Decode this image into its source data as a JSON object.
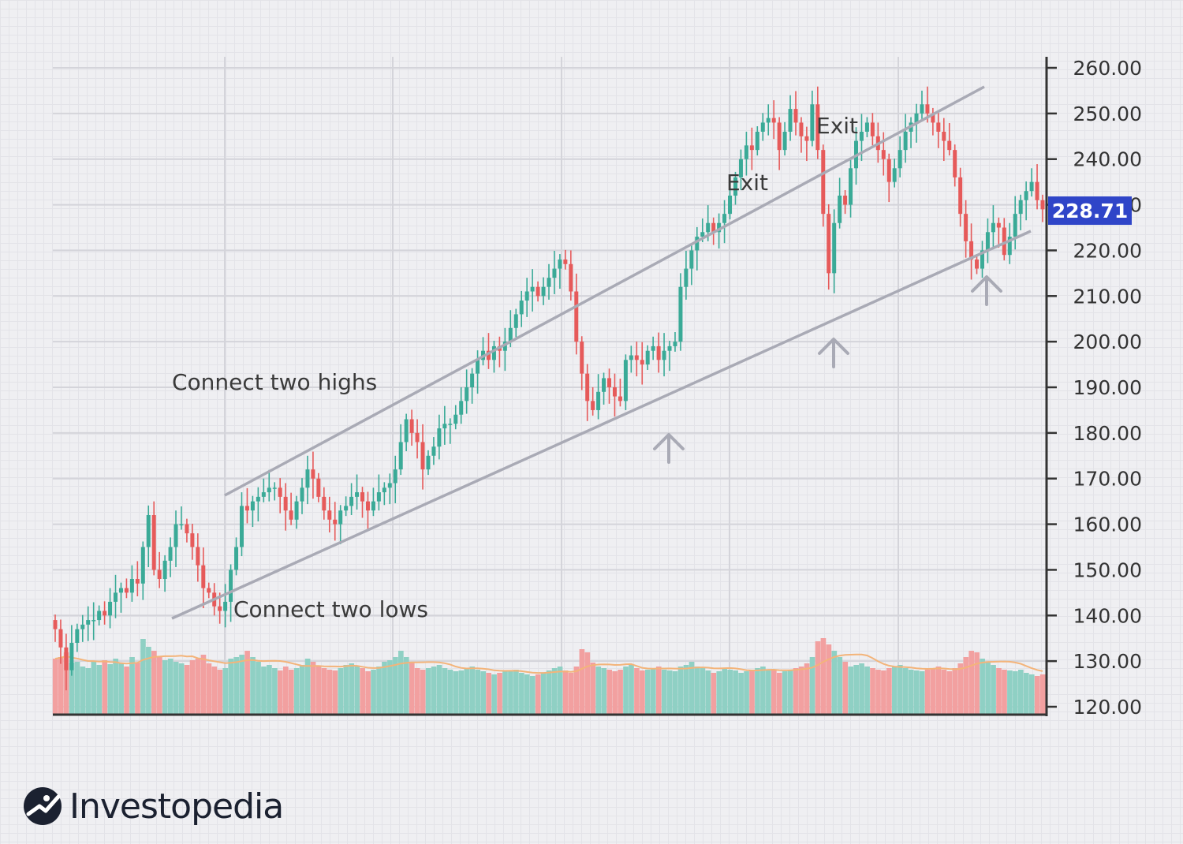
{
  "chart_data": {
    "type": "candlestick",
    "ylim": [
      120,
      260
    ],
    "y_ticks": [
      "260.00",
      "250.00",
      "240.00",
      "230.00",
      "220.00",
      "210.00",
      "200.00",
      "190.00",
      "180.00",
      "170.00",
      "160.00",
      "150.00",
      "140.00",
      "130.00",
      "120.00"
    ],
    "y_tick_values": [
      260,
      250,
      240,
      230,
      220,
      210,
      200,
      190,
      180,
      170,
      160,
      150,
      140,
      130,
      120
    ],
    "last_price": 228.71,
    "last_price_label": "228.71",
    "colors": {
      "up": "#3aaa97",
      "down": "#e65a5a",
      "volume_up": "#8fd0c4",
      "volume_down": "#f2a0a0",
      "moving_average": "#f3b47a",
      "trendline": "#a9aab5",
      "price_tag": "#2f45c8",
      "axis": "#333333"
    },
    "closes": [
      137,
      133,
      128,
      134,
      137,
      138,
      139,
      139,
      141,
      140,
      143,
      145,
      146,
      145,
      148,
      147,
      155,
      162,
      150,
      148,
      152,
      155,
      160,
      160,
      158,
      155,
      151,
      146,
      145,
      142,
      141,
      143,
      150,
      155,
      164,
      163,
      165,
      166,
      167,
      168,
      168,
      166,
      163,
      161,
      165,
      168,
      172,
      170,
      166,
      163,
      161,
      160,
      163,
      164,
      166,
      167,
      165,
      163,
      165,
      167,
      168,
      169,
      172,
      178,
      183,
      180,
      178,
      172,
      175,
      177,
      181,
      182,
      182,
      184,
      187,
      190,
      193,
      196,
      198,
      196,
      199,
      198,
      200,
      203,
      206,
      209,
      211,
      212,
      210,
      212,
      214,
      216,
      218,
      217,
      211,
      200,
      193,
      187,
      185,
      189,
      192,
      190,
      188,
      187,
      196,
      197,
      196,
      195,
      198,
      199,
      196,
      198,
      199,
      200,
      212,
      216,
      220,
      223,
      224,
      226,
      224,
      226,
      228,
      232,
      236,
      240,
      243,
      242,
      246,
      248,
      249,
      248,
      242,
      246,
      251,
      248,
      245,
      244,
      252,
      242,
      228,
      215,
      226,
      232,
      230,
      238,
      244,
      246,
      248,
      245,
      242,
      240,
      235,
      238,
      242,
      246,
      248,
      250,
      252,
      250,
      248,
      246,
      244,
      242,
      236,
      228,
      222,
      218,
      216,
      220,
      224,
      226,
      225,
      219,
      223,
      228,
      231,
      233,
      235,
      231,
      229
    ],
    "volumes": [
      70,
      72,
      78,
      65,
      66,
      60,
      58,
      66,
      62,
      68,
      63,
      70,
      64,
      60,
      72,
      65,
      95,
      85,
      80,
      72,
      68,
      70,
      66,
      64,
      62,
      68,
      70,
      75,
      64,
      60,
      56,
      58,
      70,
      72,
      75,
      80,
      72,
      66,
      60,
      62,
      58,
      55,
      60,
      56,
      58,
      62,
      70,
      66,
      60,
      58,
      56,
      55,
      58,
      62,
      64,
      60,
      58,
      54,
      56,
      60,
      66,
      68,
      72,
      80,
      72,
      66,
      58,
      56,
      58,
      60,
      62,
      58,
      56,
      54,
      55,
      58,
      60,
      56,
      54,
      52,
      50,
      52,
      54,
      55,
      56,
      52,
      50,
      48,
      50,
      52,
      55,
      58,
      60,
      55,
      52,
      60,
      82,
      78,
      65,
      60,
      58,
      56,
      54,
      56,
      60,
      62,
      58,
      55,
      56,
      58,
      60,
      56,
      55,
      54,
      60,
      62,
      66,
      60,
      58,
      55,
      52,
      54,
      58,
      56,
      55,
      52,
      54,
      56,
      58,
      60,
      56,
      55,
      52,
      54,
      56,
      58,
      60,
      64,
      72,
      92,
      96,
      88,
      80,
      72,
      66,
      60,
      62,
      64,
      60,
      58,
      56,
      55,
      58,
      60,
      62,
      58,
      56,
      55,
      54,
      56,
      58,
      60,
      56,
      54,
      58,
      64,
      72,
      80,
      78,
      70,
      66,
      62,
      58,
      56,
      55,
      54,
      56,
      52,
      50,
      48,
      50
    ]
  },
  "annotations": {
    "connect_highs": "Connect two highs",
    "connect_lows": "Connect two lows",
    "exit_1": "Exit",
    "exit_2": "Exit"
  },
  "brand": {
    "name": "Investopedia",
    "logo_icon": "investopedia-logo-icon"
  }
}
